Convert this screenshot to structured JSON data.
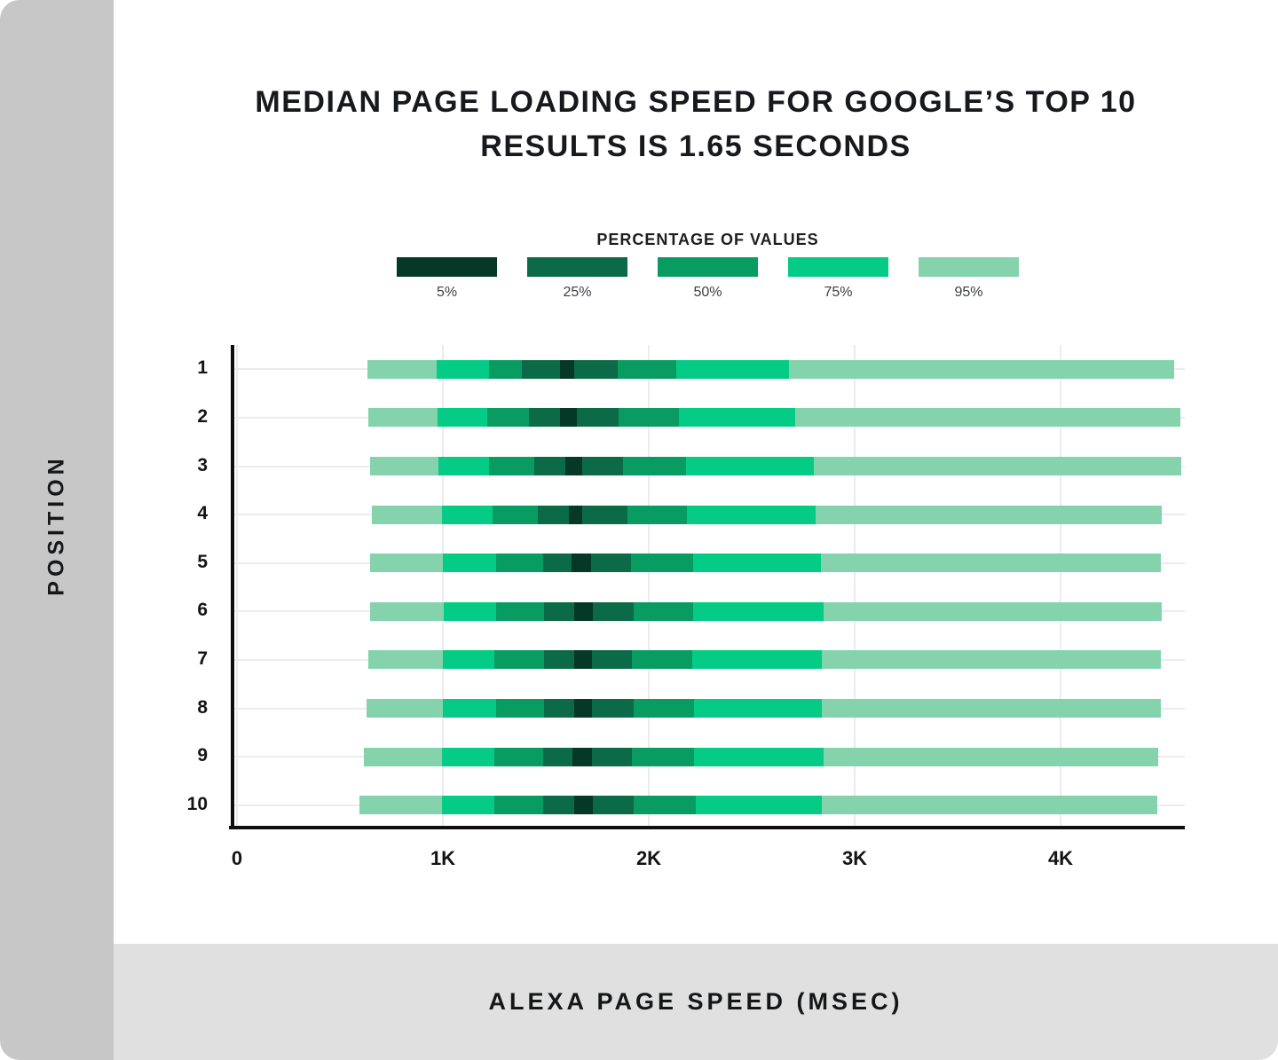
{
  "page": {
    "background": "#ffffff",
    "sidebar_bg": "#c7c7c7",
    "footer_bg": "#e0e0e0",
    "gridline_color": "#ececec",
    "axis_color": "#0e0f10"
  },
  "title": {
    "line1": "MEDIAN PAGE LOADING SPEED FOR GOOGLE’S TOP 10",
    "line2": "RESULTS IS 1.65 SECONDS"
  },
  "legend": {
    "title": "PERCENTAGE OF VALUES",
    "items": [
      {
        "label": "5%",
        "color": "#053826"
      },
      {
        "label": "25%",
        "color": "#0b6b48"
      },
      {
        "label": "50%",
        "color": "#089c63"
      },
      {
        "label": "75%",
        "color": "#04cb85"
      },
      {
        "label": "95%",
        "color": "#85d3ac"
      }
    ]
  },
  "axes": {
    "x_label": "ALEXA PAGE SPEED (MSEC)",
    "y_label": "POSITION"
  },
  "chart_data": {
    "type": "bar",
    "orientation": "horizontal",
    "title": "MEDIAN PAGE LOADING SPEED FOR GOOGLE’S TOP 10 RESULTS IS 1.65 SECONDS",
    "xlabel": "ALEXA PAGE SPEED (MSEC)",
    "ylabel": "POSITION",
    "xlim": [
      0,
      4600
    ],
    "x_tick_labels": [
      "0",
      "1K",
      "2K",
      "3K",
      "4K"
    ],
    "x_tick_values": [
      0,
      1000,
      2000,
      3000,
      4000
    ],
    "grid": true,
    "legend_position": "top",
    "band_percent_order": [
      "95%",
      "75%",
      "50%",
      "25%",
      "5%",
      "25%",
      "50%",
      "75%",
      "95%"
    ],
    "categories": [
      "1",
      "2",
      "3",
      "4",
      "5",
      "6",
      "7",
      "8",
      "9",
      "10"
    ],
    "rows": [
      {
        "position": "1",
        "boundaries_msec": [
          635,
          970,
          1225,
          1385,
          1570,
          1640,
          1850,
          2135,
          2680,
          4550
        ]
      },
      {
        "position": "2",
        "boundaries_msec": [
          640,
          975,
          1215,
          1420,
          1570,
          1650,
          1855,
          2145,
          2710,
          4580
        ]
      },
      {
        "position": "3",
        "boundaries_msec": [
          645,
          980,
          1225,
          1445,
          1595,
          1675,
          1875,
          2180,
          2800,
          4585
        ]
      },
      {
        "position": "4",
        "boundaries_msec": [
          655,
          995,
          1240,
          1460,
          1610,
          1675,
          1895,
          2185,
          2810,
          4490
        ]
      },
      {
        "position": "5",
        "boundaries_msec": [
          645,
          1000,
          1260,
          1485,
          1625,
          1720,
          1915,
          2215,
          2835,
          4485
        ]
      },
      {
        "position": "6",
        "boundaries_msec": [
          645,
          1005,
          1260,
          1490,
          1640,
          1730,
          1925,
          2215,
          2850,
          4490
        ]
      },
      {
        "position": "7",
        "boundaries_msec": [
          640,
          1000,
          1250,
          1490,
          1640,
          1725,
          1920,
          2210,
          2840,
          4485
        ]
      },
      {
        "position": "8",
        "boundaries_msec": [
          630,
          1000,
          1260,
          1490,
          1640,
          1725,
          1925,
          2220,
          2840,
          4485
        ]
      },
      {
        "position": "9",
        "boundaries_msec": [
          615,
          995,
          1250,
          1485,
          1630,
          1725,
          1920,
          2220,
          2850,
          4475
        ]
      },
      {
        "position": "10",
        "boundaries_msec": [
          595,
          995,
          1250,
          1485,
          1640,
          1730,
          1925,
          2230,
          2840,
          4470
        ]
      }
    ]
  }
}
